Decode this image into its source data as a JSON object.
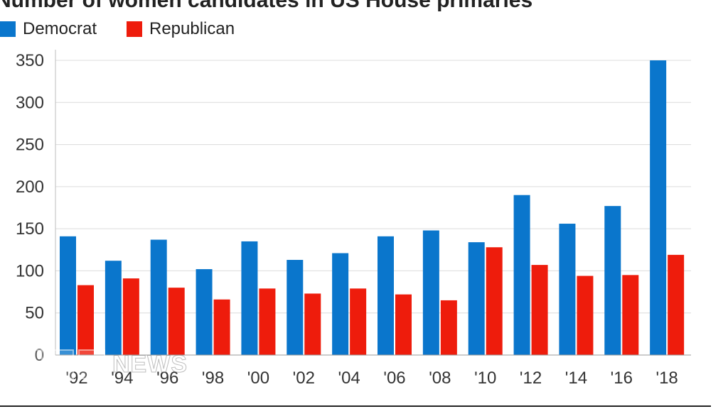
{
  "chart_data": {
    "type": "bar",
    "title": "Number of women candidates in US House primaries",
    "categories": [
      "'92",
      "'94",
      "'96",
      "'98",
      "'00",
      "'02",
      "'04",
      "'06",
      "'08",
      "'10",
      "'12",
      "'14",
      "'16",
      "'18"
    ],
    "series": [
      {
        "name": "Democrat",
        "color": "#0a76cc",
        "values": [
          141,
          112,
          137,
          102,
          135,
          113,
          121,
          141,
          148,
          134,
          190,
          156,
          177,
          350
        ]
      },
      {
        "name": "Republican",
        "color": "#ee1c0c",
        "values": [
          83,
          91,
          80,
          66,
          79,
          73,
          79,
          72,
          65,
          128,
          107,
          94,
          95,
          119
        ]
      }
    ],
    "yticks": [
      0,
      50,
      100,
      150,
      200,
      250,
      300,
      350
    ],
    "ylim": [
      0,
      350
    ],
    "grid": true,
    "legend": "top-left"
  },
  "logo": {
    "letters": [
      "B",
      "B",
      "C"
    ],
    "word": "NEWS"
  }
}
